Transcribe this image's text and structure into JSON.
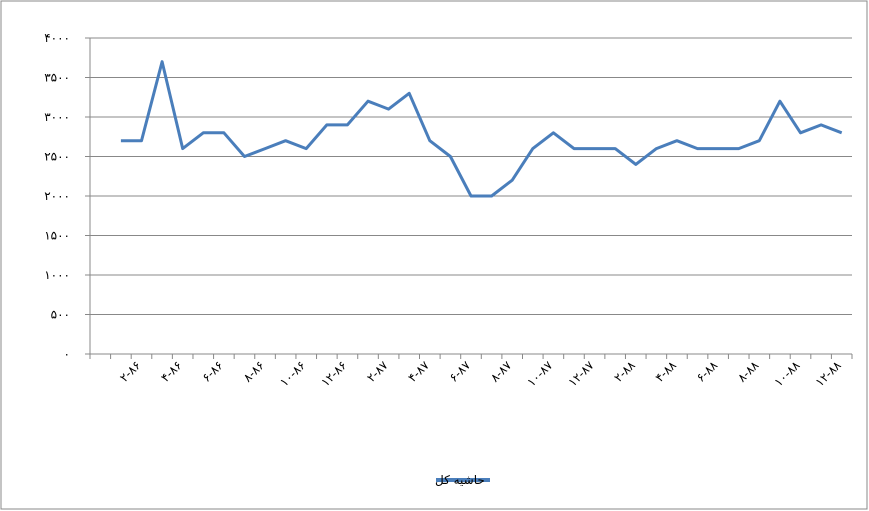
{
  "chart_data": {
    "type": "line",
    "categories": [
      null,
      "۲-۸۶",
      null,
      "۴-۸۶",
      null,
      "۶-۸۶",
      null,
      "۸-۸۶",
      null,
      "۱۰-۸۶",
      null,
      "۱۲-۸۶",
      null,
      "۲-۸۷",
      null,
      "۴-۸۷",
      null,
      "۶-۸۷",
      null,
      "۸-۸۷",
      null,
      "۱۰-۸۷",
      null,
      "۱۲-۸۷",
      null,
      "۲-۸۸",
      null,
      "۴-۸۸",
      null,
      "۶-۸۸",
      null,
      "۸-۸۸",
      null,
      "۱۰-۸۸",
      null,
      "۱۲-۸۸"
    ],
    "series": [
      {
        "name": "حاشیه کل",
        "color": "#4a7ebb",
        "values": [
          2700,
          2700,
          3700,
          2600,
          2800,
          2800,
          2500,
          2600,
          2700,
          2600,
          2900,
          2900,
          3200,
          3100,
          3300,
          2700,
          2500,
          2000,
          2000,
          2200,
          2600,
          2800,
          2600,
          2600,
          2600,
          2400,
          2600,
          2700,
          2600,
          2600,
          2600,
          2700,
          3200,
          2800,
          2900,
          2800
        ]
      }
    ],
    "ylim": [
      0,
      4000
    ],
    "yticks": [
      {
        "value": 0,
        "label": "۰"
      },
      {
        "value": 500,
        "label": "۵۰۰"
      },
      {
        "value": 1000,
        "label": "۱۰۰۰"
      },
      {
        "value": 1500,
        "label": "۱۵۰۰"
      },
      {
        "value": 2000,
        "label": "۲۰۰۰"
      },
      {
        "value": 2500,
        "label": "۲۵۰۰"
      },
      {
        "value": 3000,
        "label": "۳۰۰۰"
      },
      {
        "value": 3500,
        "label": "۳۵۰۰"
      },
      {
        "value": 4000,
        "label": "۴۰۰۰"
      }
    ],
    "grid": true,
    "legend": "bottom"
  }
}
